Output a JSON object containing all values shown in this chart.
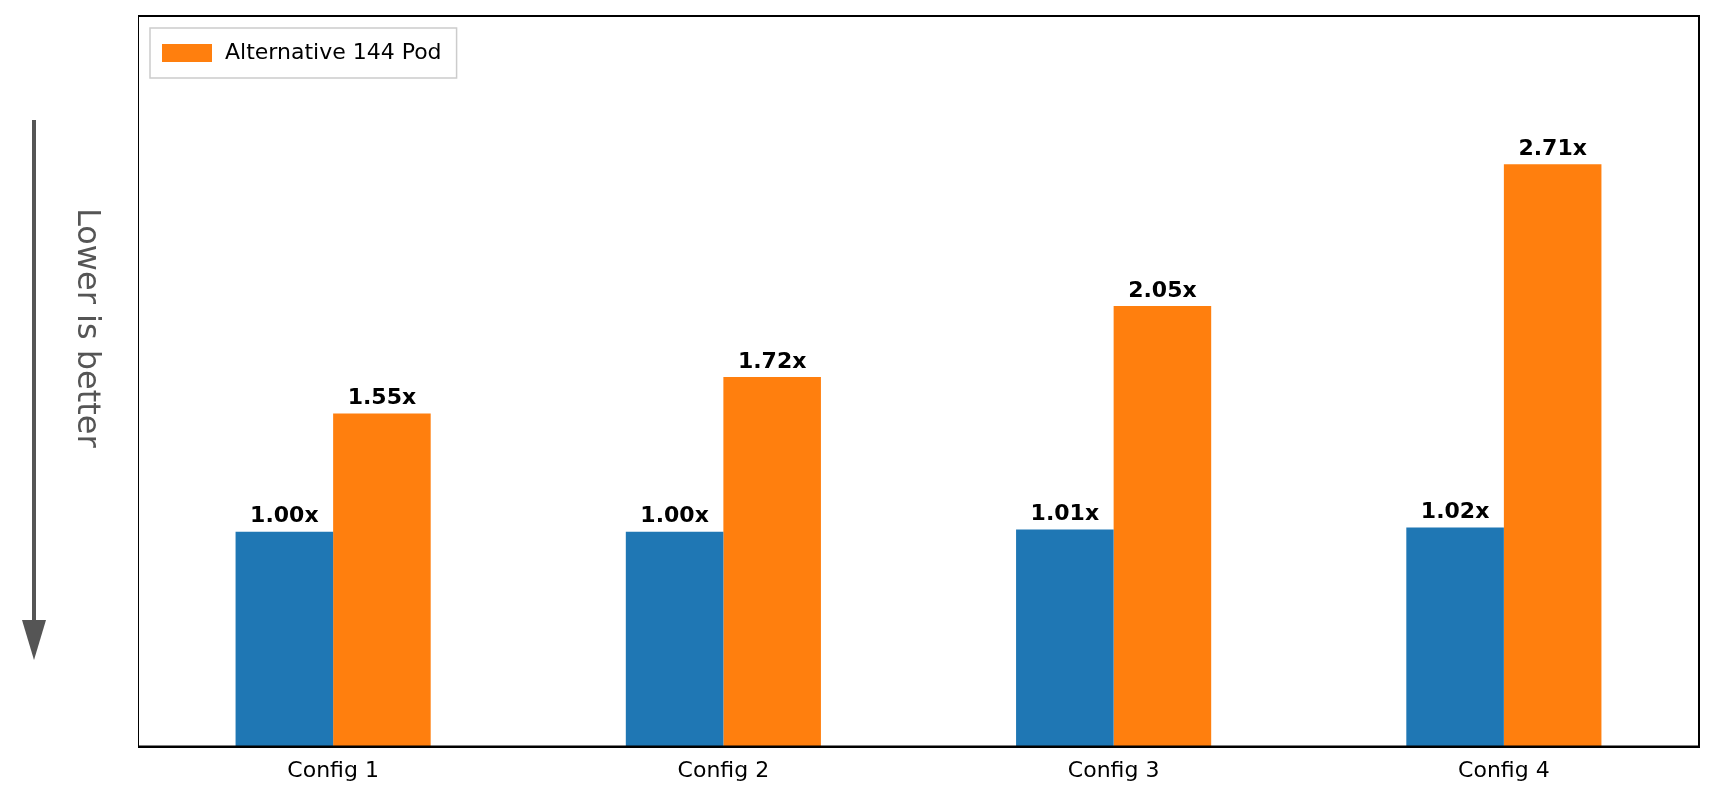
{
  "chart_data": {
    "type": "bar",
    "categories": [
      "Config 1",
      "Config 2",
      "Config 3",
      "Config 4"
    ],
    "series": [
      {
        "color": "#1f77b4",
        "values": [
          1.0,
          1.0,
          1.01,
          1.02
        ],
        "value_labels": [
          "1.00x",
          "1.00x",
          "1.01x",
          "1.02x"
        ]
      },
      {
        "name": "Alternative 144 Pod",
        "color": "#ff7f0e",
        "values": [
          1.55,
          1.72,
          2.05,
          2.71
        ],
        "value_labels": [
          "1.55x",
          "1.72x",
          "2.05x",
          "2.71x"
        ]
      }
    ],
    "ylim": [
      0,
      3.4
    ],
    "tick_labels": "x",
    "grid": false,
    "legend": "top left",
    "annotations": [
      "Lower is better"
    ]
  }
}
